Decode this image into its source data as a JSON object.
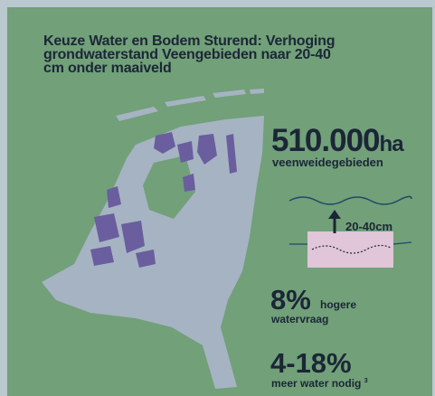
{
  "title": [
    "Keuze Water en Bodem Sturend: Verhoging",
    "grondwaterstand Veengebieden naar 20-40",
    "cm onder maaiveld"
  ],
  "stats": [
    {
      "value": "510.000",
      "unit": "ha",
      "label": "veenweidegebieden"
    },
    {
      "label": "20-40cm"
    },
    {
      "value": "8%",
      "label_1": "hogere",
      "label_2": "watervraag"
    },
    {
      "value": "4-18%",
      "label": "meer water nodig",
      "note": "3"
    }
  ]
}
